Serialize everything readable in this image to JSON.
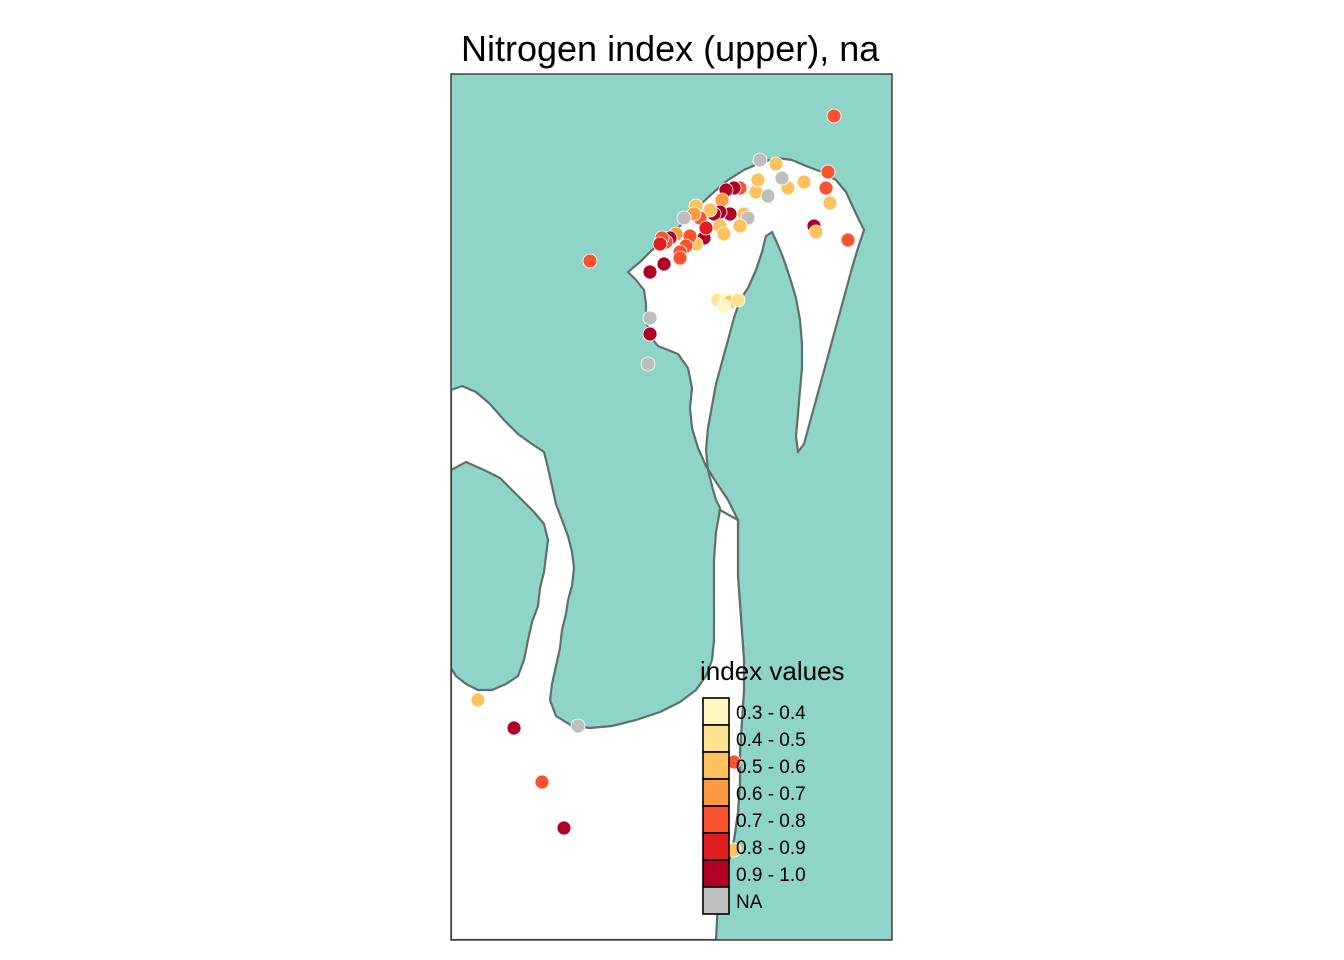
{
  "title": "Nitrogen index (upper), na",
  "colors": {
    "sea": "#8fd4c9",
    "land": "#ffffff",
    "coast": "#5f6f6d",
    "frame": "#333333"
  },
  "legend": {
    "title": "index values",
    "items": [
      {
        "label": "0.3 - 0.4",
        "color": "#fff7bf"
      },
      {
        "label": "0.4 - 0.5",
        "color": "#fee290"
      },
      {
        "label": "0.5 - 0.6",
        "color": "#fec25d"
      },
      {
        "label": "0.6 - 0.7",
        "color": "#fd9b41"
      },
      {
        "label": "0.7 - 0.8",
        "color": "#fb5230"
      },
      {
        "label": "0.8 - 0.9",
        "color": "#e01e21"
      },
      {
        "label": "0.9 - 1.0",
        "color": "#b00026"
      },
      {
        "label": "NA",
        "color": "#bebebe"
      }
    ]
  }
}
